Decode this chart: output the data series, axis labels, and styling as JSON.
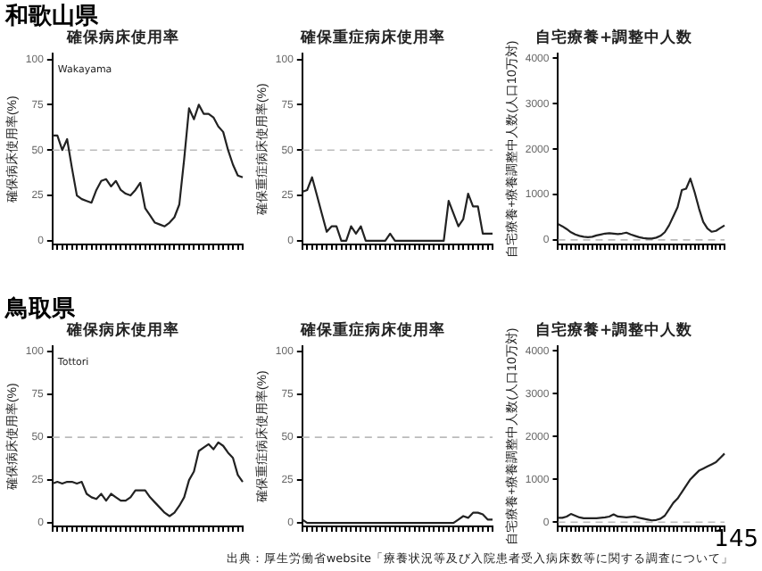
{
  "chart_data": [
    {
      "type": "line",
      "title": "確保病床使用率",
      "ylabel": "確保病床使用率(%)",
      "annotations": [
        "和歌山県",
        "Wakayama"
      ],
      "categories": [
        null,
        null,
        null,
        null,
        null,
        null,
        null,
        null,
        null,
        null,
        null,
        null,
        null,
        null,
        null,
        null,
        null,
        null,
        null,
        null,
        null,
        null,
        null,
        null,
        null,
        null,
        null,
        null,
        null,
        null,
        null,
        null,
        null,
        null,
        null,
        null,
        null,
        null,
        null,
        null
      ],
      "series": [
        {
          "color": "#222222",
          "values": [
            58,
            58,
            50,
            56,
            40,
            25,
            23,
            22,
            21,
            28,
            33,
            34,
            30,
            33,
            28,
            26,
            25,
            28,
            32,
            18,
            14,
            10,
            9,
            8,
            10,
            13,
            20,
            45,
            73,
            67,
            75,
            70,
            70,
            68,
            63,
            60,
            50,
            42,
            36,
            35
          ]
        }
      ],
      "ylim": [
        -2,
        103
      ],
      "yticks": [
        0,
        25,
        50,
        75,
        100
      ],
      "tick_labels": "y",
      "grid": false,
      "ref_lines": [
        {
          "axis": "y",
          "value": 50,
          "color": "#bbbbbb",
          "line_style": "dashed"
        }
      ]
    },
    {
      "type": "line",
      "title": "確保重症病床使用率",
      "ylabel": "確保重症病床使用率(%)",
      "categories": [
        null,
        null,
        null,
        null,
        null,
        null,
        null,
        null,
        null,
        null,
        null,
        null,
        null,
        null,
        null,
        null,
        null,
        null,
        null,
        null,
        null,
        null,
        null,
        null,
        null,
        null,
        null,
        null,
        null,
        null,
        null,
        null,
        null,
        null,
        null,
        null,
        null,
        null,
        null,
        null
      ],
      "series": [
        {
          "color": "#222222",
          "values": [
            27,
            28,
            35,
            25,
            15,
            5,
            8,
            8,
            0,
            0,
            8,
            4,
            8,
            0,
            0,
            0,
            0,
            0,
            4,
            0,
            0,
            0,
            0,
            0,
            0,
            0,
            0,
            0,
            0,
            0,
            22,
            15,
            8,
            12,
            26,
            19,
            19,
            4,
            4,
            4
          ]
        }
      ],
      "ylim": [
        -2,
        103
      ],
      "yticks": [
        0,
        25,
        50,
        75,
        100
      ],
      "tick_labels": "y",
      "grid": false,
      "ref_lines": [
        {
          "axis": "y",
          "value": 50,
          "color": "#bbbbbb",
          "line_style": "dashed"
        }
      ]
    },
    {
      "type": "line",
      "title": "自宅療養+調整中人数",
      "ylabel": "自宅療養+療養調整中人数(人口10万対)",
      "categories": [
        null,
        null,
        null,
        null,
        null,
        null,
        null,
        null,
        null,
        null,
        null,
        null,
        null,
        null,
        null,
        null,
        null,
        null,
        null,
        null,
        null,
        null,
        null,
        null,
        null,
        null,
        null,
        null,
        null,
        null,
        null,
        null,
        null,
        null,
        null,
        null,
        null,
        null,
        null,
        null
      ],
      "series": [
        {
          "color": "#222222",
          "values": [
            350,
            300,
            240,
            170,
            120,
            90,
            70,
            60,
            70,
            100,
            120,
            140,
            150,
            140,
            130,
            140,
            160,
            120,
            90,
            60,
            40,
            30,
            30,
            50,
            90,
            170,
            320,
            520,
            720,
            1100,
            1130,
            1350,
            1050,
            700,
            400,
            250,
            180,
            200,
            260,
            320
          ]
        }
      ],
      "ylim": [
        -100,
        4100
      ],
      "yticks": [
        0,
        1000,
        2000,
        3000,
        4000
      ],
      "tick_labels": "y",
      "grid": false,
      "ref_lines": [
        {
          "axis": "y",
          "value": 0,
          "color": "#bbbbbb",
          "line_style": "dashed"
        }
      ]
    },
    {
      "type": "line",
      "title": "確保病床使用率",
      "ylabel": "確保病床使用率(%)",
      "annotations": [
        "鳥取県",
        "Tottori"
      ],
      "categories": [
        null,
        null,
        null,
        null,
        null,
        null,
        null,
        null,
        null,
        null,
        null,
        null,
        null,
        null,
        null,
        null,
        null,
        null,
        null,
        null,
        null,
        null,
        null,
        null,
        null,
        null,
        null,
        null,
        null,
        null,
        null,
        null,
        null,
        null,
        null,
        null,
        null,
        null,
        null,
        null
      ],
      "series": [
        {
          "color": "#222222",
          "values": [
            23,
            24,
            23,
            24,
            24,
            23,
            24,
            17,
            15,
            14,
            17,
            13,
            17,
            15,
            13,
            13,
            15,
            19,
            19,
            19,
            15,
            12,
            9,
            6,
            4,
            6,
            10,
            15,
            25,
            30,
            42,
            44,
            46,
            43,
            47,
            45,
            41,
            38,
            28,
            24
          ]
        }
      ],
      "ylim": [
        -2,
        103
      ],
      "yticks": [
        0,
        25,
        50,
        75,
        100
      ],
      "tick_labels": "y",
      "grid": false,
      "ref_lines": [
        {
          "axis": "y",
          "value": 50,
          "color": "#bbbbbb",
          "line_style": "dashed"
        }
      ]
    },
    {
      "type": "line",
      "title": "確保重症病床使用率",
      "ylabel": "確保重症病床使用率(%)",
      "categories": [
        null,
        null,
        null,
        null,
        null,
        null,
        null,
        null,
        null,
        null,
        null,
        null,
        null,
        null,
        null,
        null,
        null,
        null,
        null,
        null,
        null,
        null,
        null,
        null,
        null,
        null,
        null,
        null,
        null,
        null,
        null,
        null,
        null,
        null,
        null,
        null,
        null,
        null,
        null,
        null
      ],
      "series": [
        {
          "color": "#222222",
          "values": [
            2,
            0,
            0,
            0,
            0,
            0,
            0,
            0,
            0,
            0,
            0,
            0,
            0,
            0,
            0,
            0,
            0,
            0,
            0,
            0,
            0,
            0,
            0,
            0,
            0,
            0,
            0,
            0,
            0,
            0,
            0,
            0,
            2,
            4,
            3,
            6,
            6,
            5,
            2,
            2
          ]
        }
      ],
      "ylim": [
        -2,
        103
      ],
      "yticks": [
        0,
        25,
        50,
        75,
        100
      ],
      "tick_labels": "y",
      "grid": false,
      "ref_lines": [
        {
          "axis": "y",
          "value": 50,
          "color": "#bbbbbb",
          "line_style": "dashed"
        }
      ]
    },
    {
      "type": "line",
      "title": "自宅療養+調整中人数",
      "ylabel": "自宅療養+療養調整中人数(人口10万対)",
      "annotations": [
        "出典：厚生労働省website「療養状況等及び入院患者受入病床数等に関する調査について」",
        "145"
      ],
      "categories": [
        null,
        null,
        null,
        null,
        null,
        null,
        null,
        null,
        null,
        null,
        null,
        null,
        null,
        null,
        null,
        null,
        null,
        null,
        null,
        null,
        null,
        null,
        null,
        null,
        null,
        null,
        null,
        null,
        null,
        null,
        null,
        null,
        null,
        null,
        null,
        null,
        null,
        null,
        null,
        null
      ],
      "series": [
        {
          "color": "#222222",
          "values": [
            100,
            100,
            130,
            190,
            150,
            110,
            90,
            90,
            90,
            90,
            100,
            110,
            130,
            180,
            130,
            120,
            110,
            120,
            130,
            100,
            80,
            60,
            40,
            50,
            80,
            150,
            300,
            450,
            550,
            700,
            850,
            1000,
            1100,
            1200,
            1250,
            1300,
            1350,
            1400,
            1500,
            1600
          ]
        }
      ],
      "ylim": [
        -100,
        4100
      ],
      "yticks": [
        0,
        1000,
        2000,
        3000,
        4000
      ],
      "tick_labels": "y",
      "grid": false,
      "ref_lines": [
        {
          "axis": "y",
          "value": 0,
          "color": "#bbbbbb",
          "line_style": "dashed"
        }
      ]
    }
  ]
}
